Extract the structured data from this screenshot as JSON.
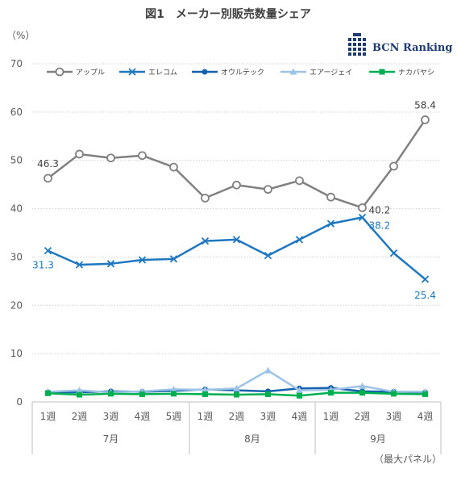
{
  "title": "図1　メーカー別販売数量シェア",
  "unit_label": "（%）",
  "footnote": "（最大パネル）",
  "brand": {
    "name": "BCN Ranking",
    "icon": "bcn-logo-icon",
    "color": "#1f3b73"
  },
  "chart_data": {
    "type": "line",
    "title": "図1　メーカー別販売数量シェア",
    "ylabel": "（%）",
    "ylim": [
      0,
      70
    ],
    "yticks": [
      0,
      10,
      20,
      30,
      40,
      50,
      60,
      70
    ],
    "grid": "horizontal dotted",
    "legend_position": "top",
    "categories": [
      "1週",
      "2週",
      "3週",
      "4週",
      "5週",
      "1週",
      "2週",
      "3週",
      "4週",
      "1週",
      "2週",
      "3週",
      "4週"
    ],
    "month_groups": [
      {
        "label": "7月",
        "span": 5
      },
      {
        "label": "8月",
        "span": 4
      },
      {
        "label": "9月",
        "span": 4
      }
    ],
    "series": [
      {
        "name": "アップル",
        "color": "#808080",
        "marker": "circle-open",
        "values": [
          46.3,
          51.3,
          50.5,
          51.0,
          48.6,
          42.2,
          44.9,
          44.0,
          45.8,
          42.4,
          40.2,
          48.8,
          58.4
        ]
      },
      {
        "name": "エレコム",
        "color": "#1f77c0",
        "marker": "x",
        "values": [
          31.3,
          28.4,
          28.6,
          29.4,
          29.6,
          33.3,
          33.6,
          30.3,
          33.6,
          36.9,
          38.2,
          30.8,
          25.4
        ]
      },
      {
        "name": "オウルテック",
        "color": "#1561ad",
        "marker": "circle-filled",
        "values": [
          2.0,
          2.0,
          2.2,
          2.1,
          2.3,
          2.6,
          2.4,
          2.2,
          2.8,
          2.9,
          2.2,
          2.1,
          2.0
        ]
      },
      {
        "name": "エアージェイ",
        "color": "#9dc3e6",
        "marker": "triangle",
        "values": [
          2.1,
          2.4,
          2.0,
          2.2,
          2.6,
          2.5,
          2.8,
          6.5,
          2.4,
          2.5,
          3.3,
          2.1,
          2.1
        ]
      },
      {
        "name": "ナカバヤシ",
        "color": "#00b050",
        "marker": "square",
        "values": [
          1.8,
          1.5,
          1.7,
          1.6,
          1.7,
          1.6,
          1.5,
          1.6,
          1.3,
          1.9,
          1.9,
          1.7,
          1.6
        ]
      }
    ],
    "annotations": [
      {
        "series": 0,
        "index": 0,
        "text": "46.3"
      },
      {
        "series": 0,
        "index": 10,
        "text": "40.2"
      },
      {
        "series": 0,
        "index": 12,
        "text": "58.4"
      },
      {
        "series": 1,
        "index": 0,
        "text": "31.3"
      },
      {
        "series": 1,
        "index": 10,
        "text": "38.2"
      },
      {
        "series": 1,
        "index": 12,
        "text": "25.4"
      }
    ]
  }
}
